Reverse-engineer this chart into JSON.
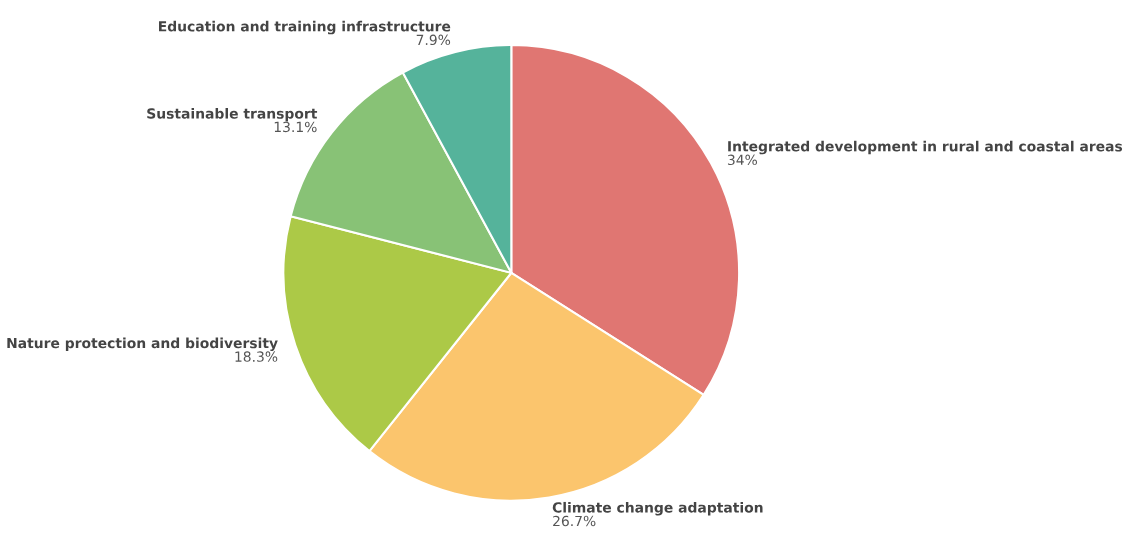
{
  "chart_data": {
    "type": "pie",
    "categories": [
      "Integrated development in rural and coastal areas",
      "Climate change adaptation",
      "Nature protection and biodiversity",
      "Sustainable transport",
      "Education and training infrastructure"
    ],
    "values": [
      34,
      26.7,
      18.3,
      13.1,
      7.9
    ],
    "value_labels": [
      "34%",
      "26.7%",
      "18.3%",
      "13.1%",
      "7.9%"
    ],
    "colors": [
      "#e07672",
      "#fbc56d",
      "#acc947",
      "#88c276",
      "#55b39b"
    ],
    "legend": false
  }
}
